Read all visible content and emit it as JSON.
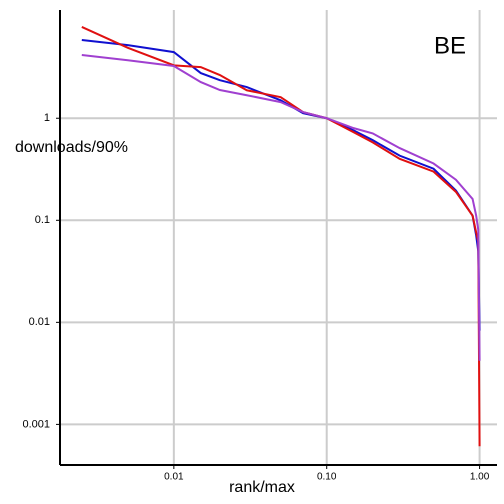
{
  "chart_data": {
    "type": "line",
    "xlabel": "rank/max",
    "ylabel": "downloads/90%",
    "annotation": "BE",
    "annotation_color": "#1a1ab4",
    "x": [
      0.0025,
      0.005,
      0.01,
      0.015,
      0.02,
      0.03,
      0.05,
      0.07,
      0.1,
      0.15,
      0.2,
      0.3,
      0.5,
      0.7,
      0.9,
      0.95,
      0.98,
      1.0
    ],
    "series": [
      {
        "color": "#1010d0",
        "values": [
          5.85,
          5.2,
          4.45,
          2.77,
          2.36,
          2.02,
          1.5,
          1.12,
          1,
          0.76,
          0.61,
          0.43,
          0.32,
          0.196,
          0.111,
          0.071,
          0.05,
          0.0083
        ]
      },
      {
        "color": "#e01010",
        "values": [
          7.85,
          4.9,
          3.3,
          3.17,
          2.65,
          1.88,
          1.61,
          1.15,
          1,
          0.73,
          0.58,
          0.4,
          0.3,
          0.19,
          0.111,
          0.076,
          0.062,
          0.00061
        ]
      },
      {
        "color": "#a040d0",
        "values": [
          4.17,
          3.7,
          3.25,
          2.26,
          1.89,
          1.68,
          1.44,
          1.15,
          1,
          0.8,
          0.71,
          0.51,
          0.36,
          0.25,
          0.162,
          0.111,
          0.081,
          0.0042
        ]
      }
    ],
    "xscale": "log",
    "yscale": "log",
    "xlim": [
      0.0018,
      1.3
    ],
    "ylim": [
      0.0004,
      11.5
    ],
    "xticks": [
      0.01,
      {
        "value": 0.1,
        "label": "0.10"
      },
      {
        "value": 1,
        "label": "1.00"
      }
    ],
    "yticks": [
      0.001,
      0.01,
      0.1,
      1
    ],
    "grid": true
  }
}
